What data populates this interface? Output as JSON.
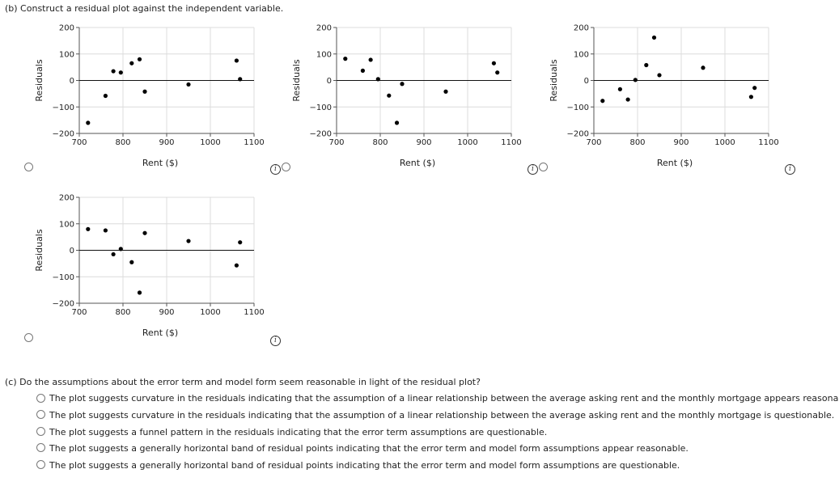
{
  "part_b": {
    "question": "(b)  Construct a residual plot against the independent variable."
  },
  "part_c": {
    "question": "(c)   Do the assumptions about the error term and model form seem reasonable in light of the residual plot?",
    "options": [
      "The plot suggests curvature in the residuals indicating that the assumption of a linear relationship between the average asking rent and the monthly mortgage appears reasonable.",
      "The plot suggests curvature in the residuals indicating that the assumption of a linear relationship between the average asking rent and the monthly mortgage is questionable.",
      "The plot suggests a funnel pattern in the residuals indicating that the error term assumptions are questionable.",
      "The plot suggests a generally horizontal band of residual points indicating that the error term and model form assumptions appear reasonable.",
      "The plot suggests a generally horizontal band of residual points indicating that the error term and model form assumptions are questionable."
    ]
  },
  "info_icon": "info-icon",
  "chart_data": [
    {
      "type": "scatter",
      "xlabel": "Rent ($)",
      "ylabel": "Residuals",
      "xlim": [
        700,
        1100
      ],
      "ylim": [
        -200,
        200
      ],
      "xticks": [
        "700",
        "800",
        "900",
        "1000",
        "1100"
      ],
      "yticks": [
        "200",
        "100",
        "0",
        "−100",
        "−200"
      ],
      "grid": true,
      "points": [
        [
          720,
          -160
        ],
        [
          760,
          -58
        ],
        [
          778,
          35
        ],
        [
          795,
          30
        ],
        [
          820,
          65
        ],
        [
          838,
          80
        ],
        [
          850,
          -42
        ],
        [
          950,
          -15
        ],
        [
          1060,
          75
        ],
        [
          1068,
          5
        ]
      ]
    },
    {
      "type": "scatter",
      "xlabel": "Rent ($)",
      "ylabel": "Residuals",
      "xlim": [
        700,
        1100
      ],
      "ylim": [
        -200,
        200
      ],
      "xticks": [
        "700",
        "800",
        "900",
        "1000",
        "1100"
      ],
      "yticks": [
        "200",
        "100",
        "0",
        "−100",
        "−200"
      ],
      "grid": true,
      "points": [
        [
          720,
          82
        ],
        [
          760,
          37
        ],
        [
          778,
          78
        ],
        [
          795,
          5
        ],
        [
          820,
          -57
        ],
        [
          838,
          -160
        ],
        [
          850,
          -13
        ],
        [
          950,
          -42
        ],
        [
          1060,
          65
        ],
        [
          1068,
          30
        ]
      ]
    },
    {
      "type": "scatter",
      "xlabel": "Rent ($)",
      "ylabel": "Residuals",
      "xlim": [
        700,
        1100
      ],
      "ylim": [
        -200,
        200
      ],
      "xticks": [
        "700",
        "800",
        "900",
        "1000",
        "1100"
      ],
      "yticks": [
        "200",
        "100",
        "0",
        "−100",
        "−200"
      ],
      "grid": true,
      "points": [
        [
          720,
          -77
        ],
        [
          760,
          -33
        ],
        [
          778,
          -72
        ],
        [
          795,
          2
        ],
        [
          820,
          58
        ],
        [
          838,
          162
        ],
        [
          850,
          20
        ],
        [
          950,
          48
        ],
        [
          1060,
          -62
        ],
        [
          1068,
          -28
        ]
      ]
    },
    {
      "type": "scatter",
      "xlabel": "Rent ($)",
      "ylabel": "Residuals",
      "xlim": [
        700,
        1100
      ],
      "ylim": [
        -200,
        200
      ],
      "xticks": [
        "700",
        "800",
        "900",
        "1000",
        "1100"
      ],
      "yticks": [
        "200",
        "100",
        "0",
        "−100",
        "−200"
      ],
      "grid": true,
      "points": [
        [
          720,
          80
        ],
        [
          760,
          75
        ],
        [
          778,
          -15
        ],
        [
          795,
          5
        ],
        [
          820,
          -45
        ],
        [
          838,
          -160
        ],
        [
          850,
          65
        ],
        [
          950,
          35
        ],
        [
          1060,
          -57
        ],
        [
          1068,
          30
        ]
      ]
    }
  ]
}
